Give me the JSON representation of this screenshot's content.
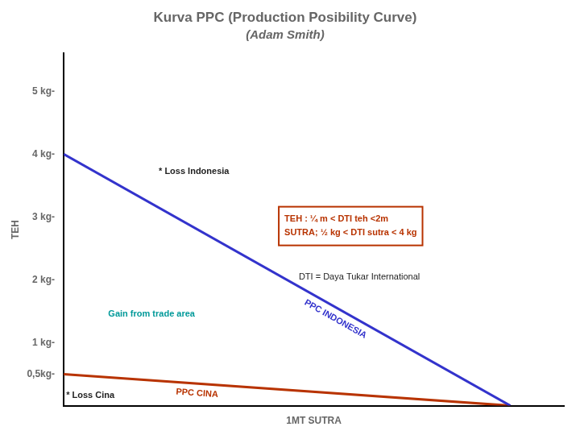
{
  "chart_data": {
    "type": "line",
    "title": "Kurva PPC (Production Posibility Curve)",
    "subtitle": "(Adam Smith)",
    "x_label": "1MT SUTRA",
    "y_label": "TEH",
    "x": [
      0,
      1
    ],
    "series": [
      {
        "name": "PPC INDONESIA",
        "color": "#3333cc",
        "values": [
          4,
          0
        ]
      },
      {
        "name": "PPC CINA",
        "color": "#b83300",
        "values": [
          0.5,
          0
        ]
      }
    ],
    "xlim": [
      0,
      1.12
    ],
    "ylim": [
      0,
      5.6
    ],
    "yticks": [
      {
        "value": 0.5,
        "label": "0,5kg-"
      },
      {
        "value": 1,
        "label": "1 kg-"
      },
      {
        "value": 2,
        "label": "2 kg-"
      },
      {
        "value": 3,
        "label": "3 kg-"
      },
      {
        "value": 4,
        "label": "4 kg-"
      },
      {
        "value": 5,
        "label": "5 kg-"
      }
    ],
    "tick_labels": "y",
    "grid": false,
    "annotations": [
      {
        "text": "* Loss Indonesia"
      },
      {
        "text": "* Loss Cina"
      },
      {
        "text": "Gain from trade area",
        "color": "#009999"
      },
      {
        "text": "DTI = Daya Tukar International"
      },
      {
        "lines": [
          "TEH : ¼ m < DTI teh <2m",
          "SUTRA; ½ kg < DTI sutra < 4 kg"
        ],
        "color": "#b83300"
      }
    ]
  }
}
